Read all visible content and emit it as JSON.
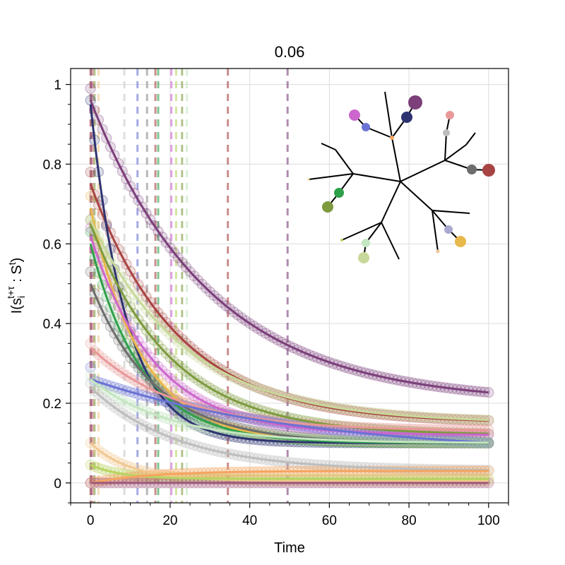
{
  "chart_data": {
    "type": "line",
    "title": "0.06",
    "xlabel": "Time",
    "ylabel": "I(s_i^{t+τ} : S^t)",
    "xlim": [
      -5,
      105
    ],
    "ylim": [
      -0.05,
      1.04
    ],
    "xticks": [
      0,
      20,
      40,
      60,
      80,
      100
    ],
    "yticks": [
      0,
      0.2,
      0.4,
      0.6,
      0.8,
      1
    ],
    "xtick_labels": [
      "0",
      "20",
      "40",
      "60",
      "80",
      "100"
    ],
    "ytick_labels": [
      "0",
      "0.2",
      "0.4",
      "0.6",
      "0.8",
      "1"
    ],
    "grid": true,
    "series": [
      {
        "color": "#7b3f7a",
        "start": 0.96,
        "end": 0.2,
        "tau": 30,
        "marker_start": 0.99
      },
      {
        "color": "#a84343",
        "start": 0.75,
        "end": 0.15,
        "tau": 22,
        "marker_start": 0.78
      },
      {
        "color": "#2e3370",
        "start": 0.95,
        "end": 0.1,
        "tau": 9,
        "marker_start": 0.96
      },
      {
        "color": "#e8b84a",
        "start": 0.69,
        "end": 0.1,
        "tau": 13,
        "marker_start": 0.72
      },
      {
        "color": "#7d9a3e",
        "start": 0.65,
        "end": 0.12,
        "tau": 20,
        "marker_start": 0.66
      },
      {
        "color": "#c8d89a",
        "start": 0.66,
        "end": 0.15,
        "tau": 24,
        "marker_start": 0.66
      },
      {
        "color": "#cc66cc",
        "start": 0.62,
        "end": 0.12,
        "tau": 16,
        "marker_start": 0.64
      },
      {
        "color": "#2fa04a",
        "start": 0.6,
        "end": 0.1,
        "tau": 13,
        "marker_start": 0.63
      },
      {
        "color": "#6c6c6c",
        "start": 0.5,
        "end": 0.1,
        "tau": 16,
        "marker_start": 0.53
      },
      {
        "color": "#e89898",
        "start": 0.34,
        "end": 0.13,
        "tau": 22,
        "marker_start": 0.35
      },
      {
        "color": "#6a72d4",
        "start": 0.26,
        "end": 0.07,
        "tau": 55,
        "marker_start": 0.29
      },
      {
        "color": "#c4e6c0",
        "start": 0.26,
        "end": 0.1,
        "tau": 20,
        "marker_start": 0.27
      },
      {
        "color": "#bdbdbd",
        "start": 0.24,
        "end": 0.03,
        "tau": 22,
        "marker_start": 0.25
      },
      {
        "color": "#f2c890",
        "start": 0.1,
        "end": 0.005,
        "tau": 10,
        "marker_start": 0.1
      },
      {
        "color": "#b6d460",
        "start": 0.045,
        "end": 0.01,
        "tau": 8,
        "marker_start": 0.045
      },
      {
        "color": "#f4a460",
        "start": 0.0,
        "end": 0.03,
        "tau": 15,
        "marker_start": 0.0
      },
      {
        "color": "#a05a7a",
        "start": 0.0,
        "end": 0.0,
        "tau": 10,
        "marker_start": 0.0
      }
    ],
    "vlines": [
      {
        "x": 0.0,
        "color": "#a84343"
      },
      {
        "x": 0.3,
        "color": "#7b3f7a"
      },
      {
        "x": 0.6,
        "color": "#e89898"
      },
      {
        "x": 1.0,
        "color": "#7d9a3e"
      },
      {
        "x": 2.0,
        "color": "#f2c890"
      },
      {
        "x": 8.5,
        "color": "#c8c8c8"
      },
      {
        "x": 11.8,
        "color": "#6a72d4"
      },
      {
        "x": 14.2,
        "color": "#8a8a8a"
      },
      {
        "x": 16.3,
        "color": "#a84343"
      },
      {
        "x": 17.0,
        "color": "#2fa04a"
      },
      {
        "x": 20.3,
        "color": "#cc66cc"
      },
      {
        "x": 21.5,
        "color": "#b6d460"
      },
      {
        "x": 23.0,
        "color": "#7d9a3e"
      },
      {
        "x": 24.2,
        "color": "#c4e6c0"
      },
      {
        "x": 34.5,
        "color": "#a84343"
      },
      {
        "x": 49.5,
        "color": "#7b3f7a"
      }
    ]
  }
}
